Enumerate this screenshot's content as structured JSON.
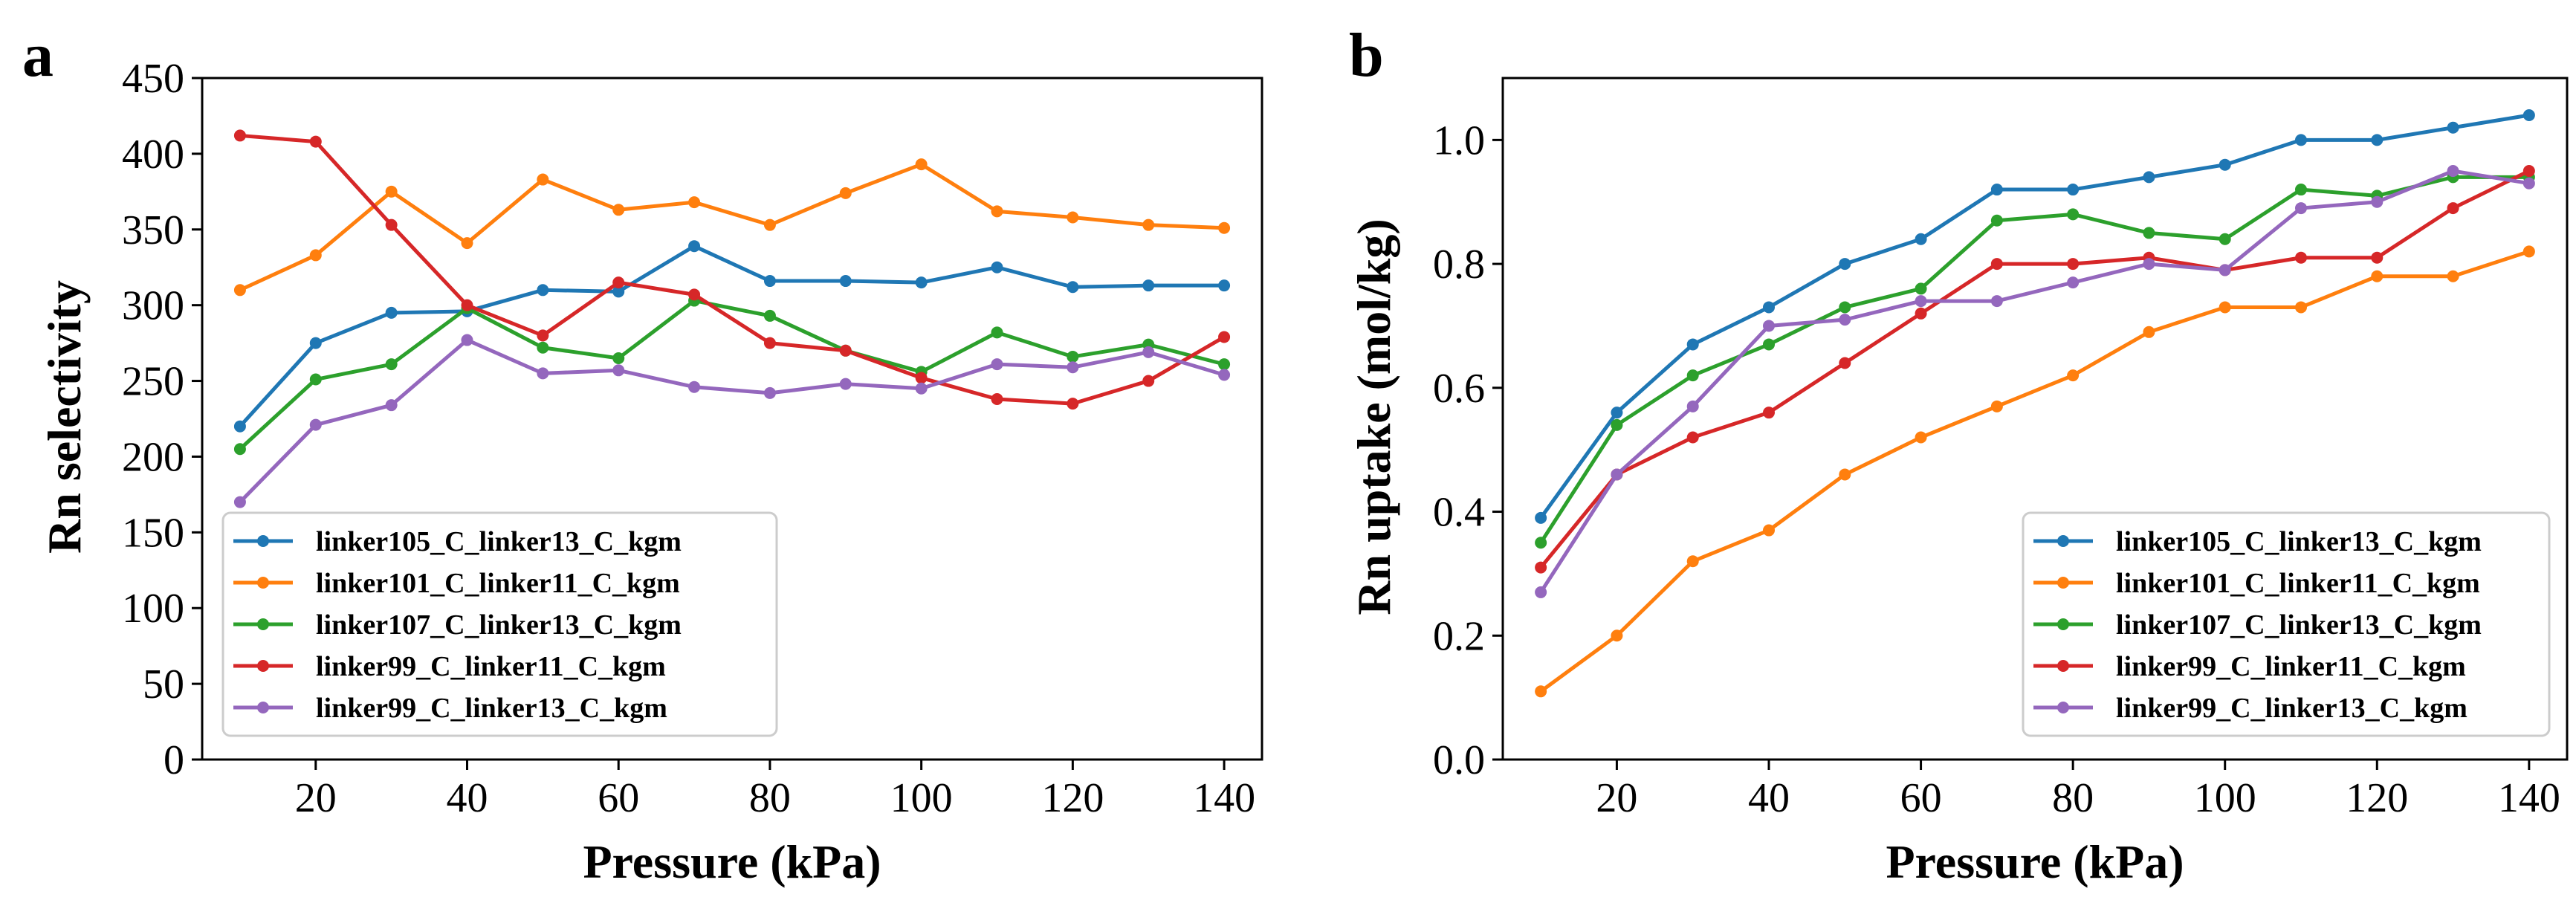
{
  "chart_data": [
    {
      "type": "line",
      "panel": "a",
      "xlabel": "Pressure (kPa)",
      "ylabel": "Rn selectivity",
      "xlim": [
        5,
        145
      ],
      "ylim": [
        0,
        450
      ],
      "xticks": [
        20,
        40,
        60,
        80,
        100,
        120,
        140
      ],
      "yticks": [
        0,
        50,
        100,
        150,
        200,
        250,
        300,
        350,
        400,
        450
      ],
      "ytick_decimals": 0,
      "legend_position": "lower-left",
      "x": [
        10,
        20,
        30,
        40,
        50,
        60,
        70,
        80,
        90,
        100,
        110,
        120,
        130,
        140
      ],
      "series": [
        {
          "name": "linker105_C_linker13_C_kgm",
          "color": "#1f77b4",
          "values": [
            220,
            275,
            295,
            296,
            310,
            309,
            339,
            316,
            316,
            315,
            325,
            312,
            313,
            313
          ]
        },
        {
          "name": "linker101_C_linker11_C_kgm",
          "color": "#ff7f0e",
          "values": [
            310,
            333,
            375,
            341,
            383,
            363,
            368,
            353,
            374,
            393,
            362,
            358,
            353,
            351
          ]
        },
        {
          "name": "linker107_C_linker13_C_kgm",
          "color": "#2ca02c",
          "values": [
            205,
            251,
            261,
            298,
            272,
            265,
            303,
            293,
            270,
            256,
            282,
            266,
            274,
            261
          ]
        },
        {
          "name": "linker99_C_linker11_C_kgm",
          "color": "#d62728",
          "values": [
            412,
            408,
            353,
            300,
            280,
            315,
            307,
            275,
            270,
            252,
            238,
            235,
            250,
            279
          ]
        },
        {
          "name": "linker99_C_linker13_C_kgm",
          "color": "#9467bd",
          "values": [
            170,
            221,
            234,
            277,
            255,
            257,
            246,
            242,
            248,
            245,
            261,
            259,
            269,
            254
          ]
        }
      ]
    },
    {
      "type": "line",
      "panel": "b",
      "xlabel": "Pressure (kPa)",
      "ylabel": "Rn uptake (mol/kg)",
      "xlim": [
        5,
        145
      ],
      "ylim": [
        0.0,
        1.1
      ],
      "xticks": [
        20,
        40,
        60,
        80,
        100,
        120,
        140
      ],
      "yticks": [
        0.0,
        0.2,
        0.4,
        0.6,
        0.8,
        1.0
      ],
      "ytick_decimals": 1,
      "legend_position": "lower-right",
      "x": [
        10,
        20,
        30,
        40,
        50,
        60,
        70,
        80,
        90,
        100,
        110,
        120,
        130,
        140
      ],
      "series": [
        {
          "name": "linker105_C_linker13_C_kgm",
          "color": "#1f77b4",
          "values": [
            0.39,
            0.56,
            0.67,
            0.73,
            0.8,
            0.84,
            0.92,
            0.92,
            0.94,
            0.96,
            1.0,
            1.0,
            1.02,
            1.04
          ]
        },
        {
          "name": "linker101_C_linker11_C_kgm",
          "color": "#ff7f0e",
          "values": [
            0.11,
            0.2,
            0.32,
            0.37,
            0.46,
            0.52,
            0.57,
            0.62,
            0.69,
            0.73,
            0.73,
            0.78,
            0.78,
            0.82
          ]
        },
        {
          "name": "linker107_C_linker13_C_kgm",
          "color": "#2ca02c",
          "values": [
            0.35,
            0.54,
            0.62,
            0.67,
            0.73,
            0.76,
            0.87,
            0.88,
            0.85,
            0.84,
            0.92,
            0.91,
            0.94,
            0.94
          ]
        },
        {
          "name": "linker99_C_linker11_C_kgm",
          "color": "#d62728",
          "values": [
            0.31,
            0.46,
            0.52,
            0.56,
            0.64,
            0.72,
            0.8,
            0.8,
            0.81,
            0.79,
            0.81,
            0.81,
            0.89,
            0.95
          ]
        },
        {
          "name": "linker99_C_linker13_C_kgm",
          "color": "#9467bd",
          "values": [
            0.27,
            0.46,
            0.57,
            0.7,
            0.71,
            0.74,
            0.74,
            0.77,
            0.8,
            0.79,
            0.89,
            0.9,
            0.95,
            0.93
          ]
        }
      ]
    }
  ]
}
